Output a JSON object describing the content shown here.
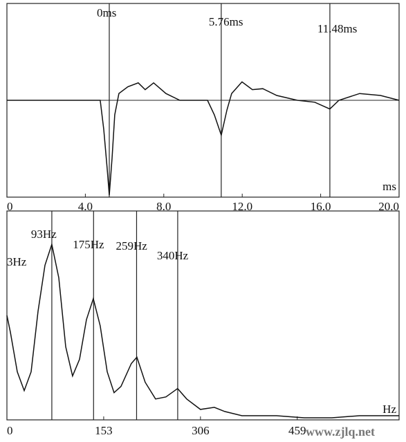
{
  "chart_data": [
    {
      "type": "line",
      "x_label": "ms",
      "x": [
        0,
        4.76,
        4.94,
        5.11,
        5.22,
        5.36,
        5.5,
        5.71,
        6.17,
        6.7,
        7.05,
        7.48,
        8.11,
        8.82,
        10.23,
        10.58,
        10.93,
        11.22,
        11.46,
        11.99,
        12.52,
        13.05,
        13.76,
        14.81,
        15.7,
        16.47,
        16.93,
        17.99,
        19.05,
        20
      ],
      "series": [
        {
          "color": "#111111",
          "values": [
            0,
            0,
            -0.3,
            -0.7,
            -0.98,
            -0.6,
            -0.15,
            0.07,
            0.14,
            0.18,
            0.11,
            0.18,
            0.07,
            0,
            0,
            -0.15,
            -0.36,
            -0.1,
            0.07,
            0.19,
            0.11,
            0.12,
            0.05,
            0,
            -0.02,
            -0.09,
            0,
            0.07,
            0.05,
            0
          ]
        }
      ],
      "xlim": [
        0,
        20
      ],
      "ylim": [
        -1,
        1
      ],
      "xticks": [
        0,
        {
          "value": 4,
          "label": "4.0"
        },
        {
          "value": 8,
          "label": "8.0"
        },
        {
          "value": 12,
          "label": "12.0"
        },
        {
          "value": 16,
          "label": "16.0"
        },
        {
          "value": 20,
          "label": "20.0"
        }
      ],
      "zero_line": true,
      "annotations": [
        {
          "x": 5.22,
          "text": "0ms"
        },
        {
          "x": 10.93,
          "text": "5.76ms"
        },
        {
          "x": 16.47,
          "text": "11.48ms"
        }
      ]
    },
    {
      "type": "line",
      "x_label": "Hz",
      "x": [
        0,
        5.5,
        16.4,
        27.3,
        38.3,
        49.2,
        60.1,
        71,
        82,
        92.9,
        103.8,
        114.8,
        125.7,
        136.6,
        147.5,
        158.5,
        169.4,
        180.3,
        196.7,
        205.5,
        218.6,
        235,
        251.4,
        269.9,
        284.2,
        306,
        327.9,
        344.3,
        371.6,
        426.2,
        469.9,
        513.7,
        557.4,
        620
      ],
      "series": [
        {
          "color": "#111111",
          "values": [
            0.5,
            0.42,
            0.23,
            0.14,
            0.23,
            0.52,
            0.74,
            0.84,
            0.68,
            0.35,
            0.21,
            0.29,
            0.48,
            0.58,
            0.45,
            0.23,
            0.13,
            0.16,
            0.27,
            0.3,
            0.18,
            0.1,
            0.11,
            0.15,
            0.1,
            0.05,
            0.06,
            0.04,
            0.02,
            0.02,
            0.01,
            0.01,
            0.02,
            0.02
          ]
        }
      ],
      "xlim": [
        0,
        620
      ],
      "ylim": [
        0,
        1
      ],
      "xticks": [
        0,
        153,
        306,
        459
      ],
      "zero_line": false,
      "annotations": [
        {
          "x": 0,
          "text": "3Hz"
        },
        {
          "x": 71,
          "text": "93Hz"
        },
        {
          "x": 137,
          "text": "175Hz"
        },
        {
          "x": 205,
          "text": "259Hz"
        },
        {
          "x": 270,
          "text": "340Hz"
        }
      ]
    }
  ],
  "watermark": "www.zjlq.net"
}
